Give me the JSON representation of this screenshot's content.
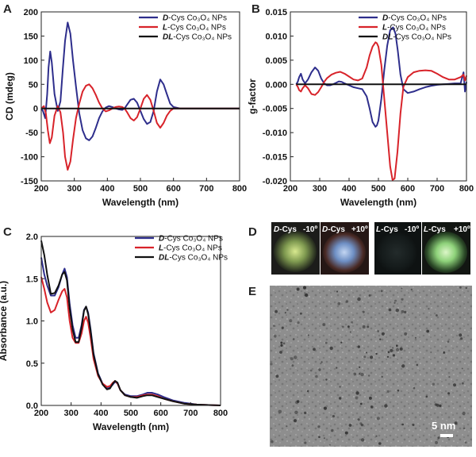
{
  "colors": {
    "D": "#2e2e8c",
    "L": "#d8232a",
    "DL": "#111111"
  },
  "chart_data": [
    {
      "id": "A",
      "panel_label": "A",
      "type": "line",
      "xlabel": "Wavelength (nm)",
      "ylabel": "CD (mdeg)",
      "xlim": [
        200,
        800
      ],
      "ylim": [
        -150,
        200
      ],
      "xticks": [
        200,
        300,
        400,
        500,
        600,
        700,
        800
      ],
      "yticks": [
        -150,
        -100,
        -50,
        0,
        50,
        100,
        150,
        200
      ],
      "grid": false,
      "legend_position": "top-right",
      "series": [
        {
          "key": "D",
          "prefix": "D",
          "name": "-Cys Co₃O₄ NPs",
          "x": [
            200,
            205,
            212,
            218,
            222,
            227,
            232,
            240,
            250,
            258,
            265,
            272,
            280,
            288,
            296,
            305,
            315,
            325,
            335,
            345,
            355,
            365,
            375,
            385,
            395,
            405,
            415,
            425,
            435,
            445,
            452,
            460,
            470,
            480,
            490,
            500,
            510,
            520,
            530,
            540,
            550,
            560,
            570,
            580,
            590,
            600,
            620,
            640,
            660,
            680,
            700,
            750,
            800
          ],
          "y": [
            0,
            -5,
            -20,
            30,
            85,
            118,
            95,
            30,
            -5,
            15,
            80,
            140,
            178,
            155,
            100,
            45,
            -10,
            -45,
            -62,
            -66,
            -58,
            -40,
            -20,
            -6,
            2,
            5,
            3,
            0,
            -2,
            -3,
            0,
            8,
            18,
            20,
            12,
            -5,
            -22,
            -32,
            -28,
            -5,
            35,
            60,
            50,
            30,
            10,
            3,
            0,
            0,
            0,
            0,
            0,
            0,
            0
          ]
        },
        {
          "key": "L",
          "prefix": "L",
          "name": "-Cys Co₃O₄  NPs",
          "x": [
            200,
            208,
            214,
            220,
            226,
            232,
            240,
            250,
            258,
            266,
            272,
            280,
            288,
            296,
            305,
            315,
            325,
            335,
            345,
            355,
            365,
            375,
            385,
            395,
            405,
            415,
            425,
            435,
            445,
            452,
            460,
            470,
            480,
            490,
            500,
            510,
            520,
            530,
            540,
            550,
            560,
            570,
            580,
            590,
            600,
            620,
            640,
            660,
            680,
            700,
            750,
            800
          ],
          "y": [
            0,
            5,
            -10,
            -45,
            -72,
            -60,
            -15,
            5,
            -8,
            -50,
            -100,
            -127,
            -110,
            -65,
            -20,
            10,
            35,
            47,
            50,
            42,
            28,
            12,
            0,
            -6,
            -4,
            0,
            3,
            4,
            3,
            0,
            -8,
            -20,
            -25,
            -18,
            0,
            20,
            28,
            18,
            -5,
            -30,
            -40,
            -30,
            -15,
            -5,
            0,
            0,
            0,
            0,
            0,
            0,
            0,
            0
          ]
        },
        {
          "key": "DL",
          "prefix": "DL",
          "name": "-Cys Co₃O₄ NPs",
          "x": [
            200,
            300,
            400,
            500,
            600,
            700,
            800
          ],
          "y": [
            0,
            0,
            0,
            0,
            0,
            0,
            0
          ]
        }
      ]
    },
    {
      "id": "B",
      "panel_label": "B",
      "type": "line",
      "xlabel": "Wavelength (nm)",
      "ylabel": "g-factor",
      "xlim": [
        200,
        800
      ],
      "ylim": [
        -0.02,
        0.015
      ],
      "xticks": [
        200,
        300,
        400,
        500,
        600,
        700,
        800
      ],
      "yticks": [
        -0.02,
        -0.015,
        -0.01,
        -0.005,
        0.0,
        0.005,
        0.01,
        0.015
      ],
      "ytick_labels": [
        "-0.020",
        "-0.015",
        "-0.010",
        "-0.005",
        "0.000",
        "0.005",
        "0.010",
        "0.015"
      ],
      "grid": false,
      "legend_position": "top-right",
      "series": [
        {
          "key": "D",
          "prefix": "D",
          "name": "-Cys Co₃O₄ NPs",
          "x": [
            220,
            225,
            230,
            236,
            242,
            250,
            260,
            272,
            284,
            295,
            305,
            315,
            325,
            335,
            345,
            355,
            365,
            375,
            385,
            400,
            415,
            430,
            445,
            460,
            470,
            480,
            490,
            495,
            500,
            510,
            520,
            530,
            540,
            550,
            558,
            566,
            575,
            585,
            600,
            620,
            640,
            660,
            680,
            700,
            720,
            740,
            760,
            780,
            790,
            795,
            800
          ],
          "y": [
            0,
            0.0005,
            0.0015,
            0.0022,
            0.001,
            0.0002,
            0.001,
            0.0025,
            0.0035,
            0.0028,
            0.0012,
            0.0002,
            -0.0002,
            -0.0002,
            0,
            0.0003,
            0.0006,
            0.0005,
            0.0002,
            -0.0002,
            -0.0006,
            -0.0008,
            -0.001,
            -0.0025,
            -0.005,
            -0.0078,
            -0.0088,
            -0.0085,
            -0.0075,
            -0.003,
            0.003,
            0.008,
            0.0112,
            0.0118,
            0.0105,
            0.007,
            0.002,
            -0.001,
            -0.0018,
            -0.0015,
            -0.001,
            -0.0006,
            -0.0003,
            -0.0001,
            0,
            0.0001,
            0.0002,
            0.0002,
            0.0025,
            -0.0015,
            0.0005
          ]
        },
        {
          "key": "L",
          "prefix": "L",
          "name": "-Cys Co₃O₄  NPs",
          "x": [
            220,
            225,
            230,
            236,
            242,
            250,
            260,
            272,
            284,
            295,
            305,
            315,
            325,
            340,
            355,
            370,
            385,
            400,
            415,
            430,
            445,
            460,
            470,
            480,
            490,
            495,
            500,
            510,
            520,
            530,
            540,
            548,
            555,
            565,
            575,
            585,
            600,
            620,
            640,
            660,
            680,
            700,
            720,
            740,
            760,
            780,
            790,
            795,
            800
          ],
          "y": [
            0,
            -0.0005,
            -0.0012,
            -0.0015,
            -0.0008,
            -0.0002,
            -0.0008,
            -0.002,
            -0.0022,
            -0.0016,
            -0.0006,
            0.0005,
            0.0013,
            0.002,
            0.0024,
            0.0026,
            0.0022,
            0.0016,
            0.001,
            0.0008,
            0.0012,
            0.0035,
            0.006,
            0.0078,
            0.0087,
            0.0085,
            0.0078,
            0.004,
            -0.003,
            -0.01,
            -0.017,
            -0.0198,
            -0.0195,
            -0.014,
            -0.006,
            -0.0005,
            0.0015,
            0.0025,
            0.0028,
            0.0029,
            0.0028,
            0.0022,
            0.0015,
            0.001,
            0.001,
            0.0015,
            0.002,
            0.0008,
            0.0018
          ]
        },
        {
          "key": "DL",
          "prefix": "DL",
          "name": "-Cys Co₃O₄ NPs",
          "x": [
            220,
            300,
            400,
            500,
            600,
            700,
            800
          ],
          "y": [
            0,
            0,
            0,
            0,
            0,
            0,
            0
          ]
        }
      ]
    },
    {
      "id": "C",
      "panel_label": "C",
      "type": "line",
      "xlabel": "Wavelength (nm)",
      "ylabel": "Absorbance (a.u.)",
      "xlim": [
        200,
        800
      ],
      "ylim": [
        0.0,
        2.0
      ],
      "xticks": [
        200,
        300,
        400,
        500,
        600,
        700,
        800
      ],
      "yticks": [
        0.0,
        0.5,
        1.0,
        1.5,
        2.0
      ],
      "ytick_labels": [
        "0.0",
        "0.5",
        "1.0",
        "1.5",
        "2.0"
      ],
      "grid": false,
      "legend_position": "top-right",
      "series": [
        {
          "key": "D",
          "prefix": "D",
          "name": "-Cys Co₃O₄ NPs",
          "x": [
            200,
            210,
            220,
            232,
            245,
            258,
            270,
            278,
            286,
            295,
            305,
            315,
            325,
            335,
            343,
            350,
            357,
            365,
            375,
            390,
            405,
            420,
            430,
            440,
            447,
            455,
            465,
            480,
            500,
            520,
            540,
            555,
            570,
            590,
            610,
            640,
            680,
            720,
            760,
            800
          ],
          "y": [
            1.75,
            1.55,
            1.42,
            1.3,
            1.3,
            1.4,
            1.55,
            1.62,
            1.52,
            1.2,
            0.95,
            0.8,
            0.8,
            0.95,
            1.13,
            1.17,
            1.1,
            0.9,
            0.62,
            0.38,
            0.26,
            0.2,
            0.21,
            0.25,
            0.28,
            0.26,
            0.18,
            0.13,
            0.11,
            0.11,
            0.13,
            0.15,
            0.15,
            0.13,
            0.1,
            0.06,
            0.03,
            0.01,
            0.005,
            0.0
          ]
        },
        {
          "key": "L",
          "prefix": "L",
          "name": "-Cys Co₃O₄  NPs",
          "x": [
            200,
            210,
            220,
            232,
            245,
            258,
            270,
            278,
            286,
            295,
            305,
            315,
            325,
            335,
            343,
            350,
            357,
            365,
            375,
            390,
            405,
            420,
            430,
            440,
            447,
            455,
            465,
            480,
            500,
            520,
            540,
            555,
            570,
            590,
            610,
            640,
            680,
            720,
            760,
            800
          ],
          "y": [
            1.52,
            1.38,
            1.22,
            1.1,
            1.13,
            1.25,
            1.35,
            1.38,
            1.28,
            1.0,
            0.8,
            0.74,
            0.74,
            0.85,
            1.0,
            1.05,
            0.98,
            0.8,
            0.55,
            0.35,
            0.26,
            0.22,
            0.23,
            0.27,
            0.29,
            0.26,
            0.18,
            0.12,
            0.1,
            0.1,
            0.12,
            0.13,
            0.13,
            0.11,
            0.08,
            0.05,
            0.02,
            0.01,
            0.005,
            0.0
          ]
        },
        {
          "key": "DL",
          "prefix": "DL",
          "name": "-Cys Co₃O₄ NPs",
          "x": [
            200,
            210,
            220,
            232,
            245,
            258,
            270,
            278,
            286,
            295,
            305,
            315,
            325,
            335,
            343,
            350,
            357,
            365,
            375,
            390,
            405,
            420,
            430,
            440,
            447,
            455,
            465,
            480,
            500,
            520,
            540,
            555,
            570,
            590,
            610,
            640,
            680,
            720,
            760,
            800
          ],
          "y": [
            1.95,
            1.78,
            1.55,
            1.32,
            1.33,
            1.42,
            1.55,
            1.58,
            1.48,
            1.15,
            0.9,
            0.75,
            0.75,
            0.92,
            1.12,
            1.17,
            1.08,
            0.88,
            0.6,
            0.37,
            0.25,
            0.19,
            0.2,
            0.26,
            0.29,
            0.27,
            0.18,
            0.12,
            0.1,
            0.09,
            0.11,
            0.12,
            0.12,
            0.1,
            0.08,
            0.05,
            0.02,
            0.01,
            0.005,
            0.0
          ]
        }
      ]
    }
  ],
  "panel_d": {
    "label": "D",
    "photos": [
      {
        "prefix": "D",
        "name": "-Cys",
        "angle": "-10º"
      },
      {
        "prefix": "D",
        "name": "-Cys",
        "angle": "+10º"
      },
      {
        "prefix": "L",
        "name": "-Cys",
        "angle": "-10º"
      },
      {
        "prefix": "L",
        "name": "-Cys",
        "angle": "+10º"
      }
    ]
  },
  "panel_e": {
    "label": "E",
    "scale_bar": "5 nm"
  }
}
